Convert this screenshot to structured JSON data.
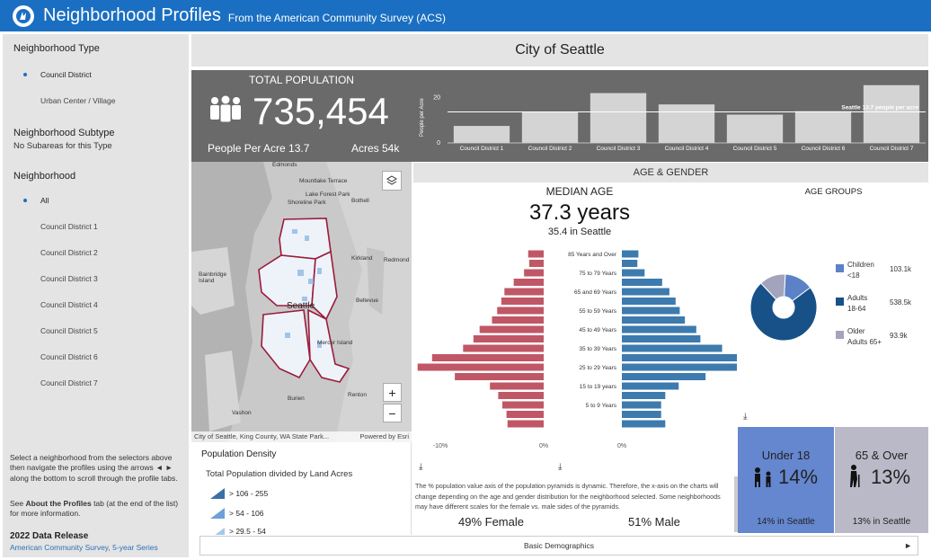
{
  "header": {
    "title": "Neighborhood Profiles",
    "subtitle": "From the American Community Survey (ACS)"
  },
  "sidebar": {
    "type_label": "Neighborhood Type",
    "type_options": [
      "Council District",
      "Urban Center / Village"
    ],
    "subtype_label": "Neighborhood Subtype",
    "subtype_value": "No Subareas for this Type",
    "neigh_label": "Neighborhood",
    "neigh_options": [
      "All",
      "Council District 1",
      "Council District 2",
      "Council District 3",
      "Council District 4",
      "Council District 5",
      "Council District 6",
      "Council District 7"
    ],
    "instructions": "Select a neighborhood from the selectors above then navigate the profiles using the arrows ◄ ► along the bottom to scroll through the profile tabs.",
    "about_pre": "See ",
    "about_link": "About the Profiles",
    "about_post": " tab (at the end of the list) for more information.",
    "release_title": "2022 Data Release",
    "release_link": "American Community Survey, 5-year Series"
  },
  "city_title": "City of Seattle",
  "population": {
    "label": "TOTAL POPULATION",
    "value": "735,454",
    "ppa": "People Per Acre 13.7",
    "acres": "Acres 54k"
  },
  "density_chart": {
    "ylabel": "People per Acre",
    "ylim": [
      0,
      25
    ],
    "ticks": [
      "0",
      "20"
    ],
    "ref_label": "Seattle 13.7 people per acre",
    "ref_value": 13.7,
    "categories": [
      "Council District 1",
      "Council District 2",
      "Council District 3",
      "Council District 4",
      "Council District 5",
      "Council District 6",
      "Council District 7"
    ],
    "values": [
      7.5,
      13.5,
      22,
      17,
      12.5,
      14,
      25.5
    ]
  },
  "map": {
    "labels": [
      "Edmonds",
      "Mountlake Terrace",
      "Lake Forest Park",
      "Shoreline Park",
      "Bothell",
      "Kirkland",
      "Redmond",
      "Bainbridge Island",
      "Seattle",
      "Bellevue",
      "Mercer Island",
      "Burien",
      "Renton",
      "Vashon"
    ],
    "attribution": "City of Seattle, King County, WA State Park...",
    "powered": "Powered by Esri",
    "zoom_in": "+",
    "zoom_out": "−"
  },
  "legend": {
    "title": "Population Density",
    "subtitle": "Total Population divided by Land Acres",
    "items": [
      "> 106 - 255",
      "> 54 - 106",
      "> 29.5 - 54"
    ],
    "colors": [
      "#3a6fa8",
      "#6da0d6",
      "#a5c8ee"
    ]
  },
  "age_gender": {
    "header": "AGE & GENDER",
    "median_label": "MEDIAN AGE",
    "median_value": "37.3 years",
    "median_seattle": "35.4 in Seattle",
    "female": "49% Female",
    "male": "51% Male",
    "note": "The % population value axis of the population pyramids is dynamic. Therefore, the x-axis on the charts will change depending on the age and gender distribution for the neighborhood selected. Some neighborhoods may have different scales for the female vs. male sides of the pyramids.",
    "female_ticks": [
      "-10%",
      "0%"
    ],
    "male_ticks": [
      "0%"
    ],
    "age_labels": [
      "85 Years and Over",
      "75 to 79 Years",
      "65 and 69 Years",
      "55 to 59 Years",
      "45 to 49 Years",
      "35 to 39 Years",
      "25 to 29 Years",
      "15 to 19 years",
      "5 to 9 Years"
    ]
  },
  "chart_data": [
    {
      "type": "bar",
      "title": "",
      "ylabel": "People per Acre",
      "categories": [
        "Council District 1",
        "Council District 2",
        "Council District 3",
        "Council District 4",
        "Council District 5",
        "Council District 6",
        "Council District 7"
      ],
      "values": [
        7.5,
        13.5,
        22,
        17,
        12.5,
        14,
        25.5
      ],
      "ylim": [
        0,
        25
      ]
    },
    {
      "type": "bar",
      "title": "",
      "female_pct": [
        -1.5,
        -1.4,
        -1.9,
        -2.9,
        -3.8,
        -4.1,
        -4.5,
        -5.0,
        -6.2,
        -6.8,
        -7.8,
        -10.8,
        -12.2,
        -8.6,
        -5.2,
        -4.4,
        -4.0,
        -3.6,
        -3.5
      ],
      "male_pct": [
        1.6,
        1.5,
        2.2,
        3.9,
        4.6,
        5.2,
        5.6,
        6.1,
        7.2,
        7.6,
        9.7,
        13.2,
        14.0,
        8.1,
        5.5,
        4.2,
        3.8,
        3.8,
        4.2
      ]
    },
    {
      "type": "pie",
      "title": "AGE GROUPS",
      "labels": [
        "Children <18",
        "Adults 18-64",
        "Older Adults 65+"
      ],
      "values": [
        103.1,
        538.5,
        93.9
      ],
      "display": [
        "103.1k",
        "538.5k",
        "93.9k"
      ],
      "colors": [
        "#5b82c7",
        "#175187",
        "#a3a4bc"
      ]
    }
  ],
  "age_groups": {
    "title": "AGE GROUPS",
    "items": [
      {
        "label1": "Children",
        "label2": "<18",
        "value": "103.1k"
      },
      {
        "label1": "Adults",
        "label2": "18-64",
        "value": "538.5k"
      },
      {
        "label1": "Older",
        "label2": "Adults 65+",
        "value": "93.9k"
      }
    ]
  },
  "under18": {
    "label": "Under 18",
    "pct": "14%",
    "seattle": "14% in Seattle"
  },
  "over65": {
    "label": "65 & Over",
    "pct": "13%",
    "seattle": "13% in Seattle"
  },
  "tabs": {
    "current": "Basic Demographics",
    "prev": "◄",
    "next": "►"
  }
}
